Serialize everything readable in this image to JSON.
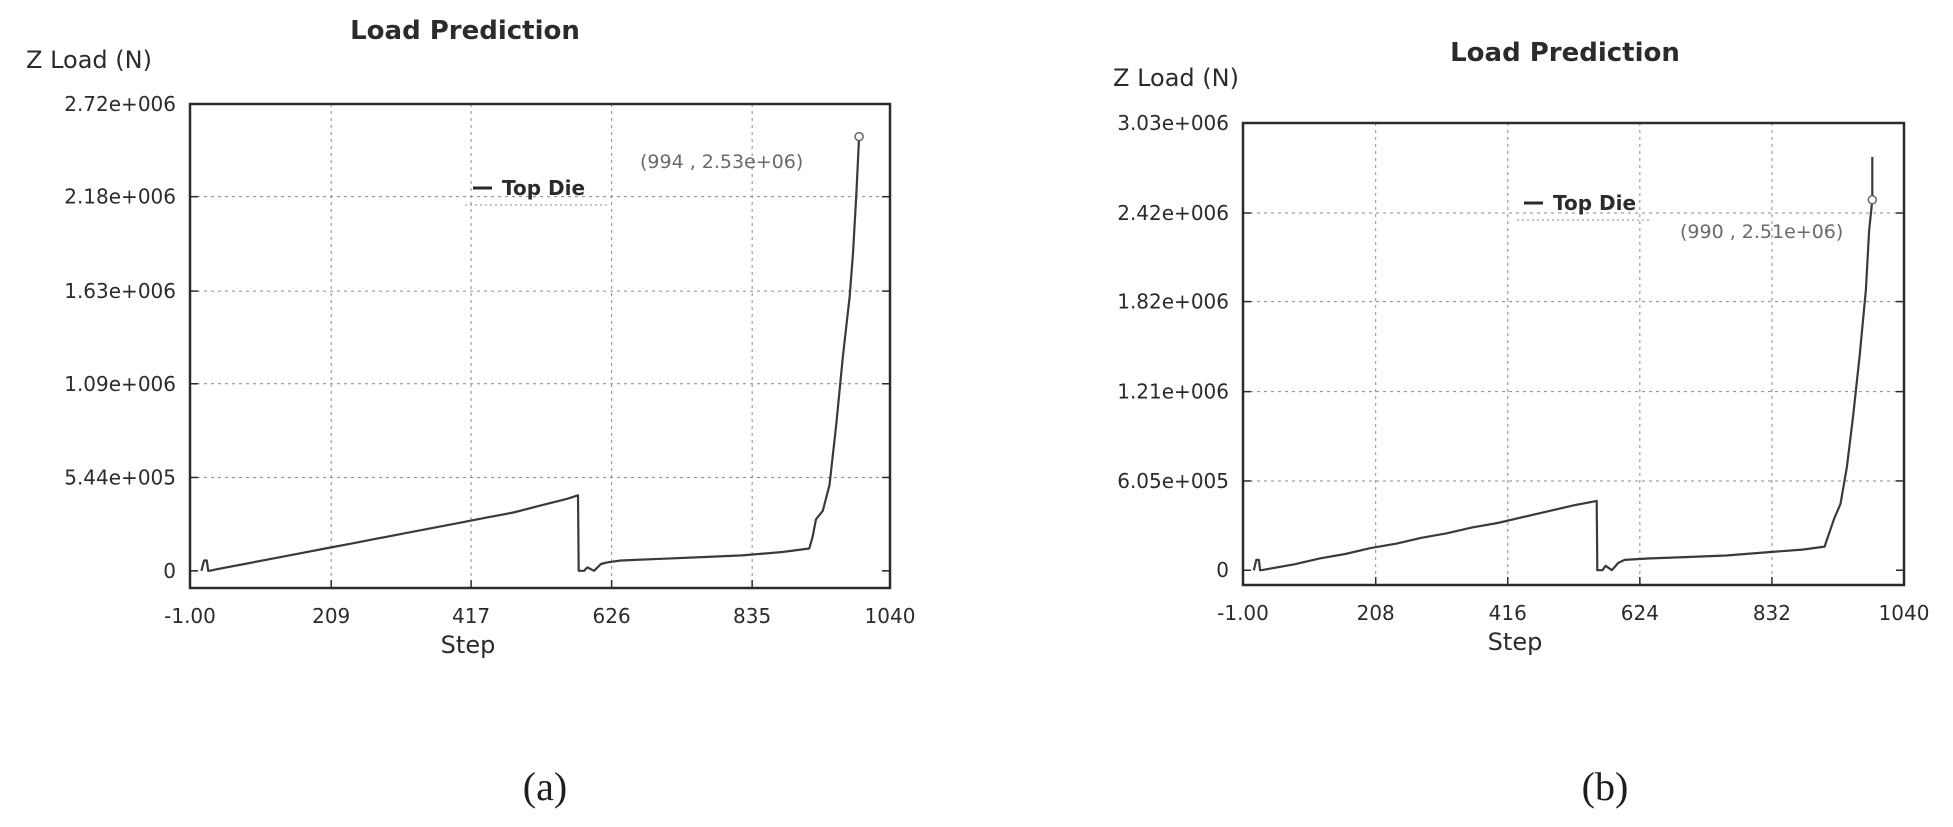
{
  "chart_data": [
    {
      "type": "line",
      "title": "Load Prediction",
      "ylabel": "Z Load (N)",
      "xlabel": "Step",
      "caption": "(a)",
      "xlim": [
        -1.0,
        1040
      ],
      "ylim": [
        -100000.0,
        2720000.0
      ],
      "xticks": [
        -1.0,
        209,
        417,
        626,
        835,
        1040
      ],
      "xtick_labels": [
        "-1.00",
        "209",
        "417",
        "626",
        "835",
        "1040"
      ],
      "yticks": [
        0,
        544000,
        1090000,
        1630000,
        2180000,
        2720000
      ],
      "ytick_labels": [
        "0",
        "5.44e+005",
        "1.09e+006",
        "1.63e+006",
        "2.18e+006",
        "2.72e+006"
      ],
      "grid": true,
      "legend": "top-center",
      "series": [
        {
          "name": "Top Die",
          "x": [
            16,
            20,
            24,
            26,
            28,
            40,
            80,
            120,
            160,
            200,
            240,
            280,
            320,
            360,
            400,
            440,
            480,
            520,
            560,
            576,
            577,
            585,
            590,
            600,
            610,
            620,
            640,
            700,
            760,
            820,
            880,
            920,
            925,
            930,
            940,
            950,
            960,
            970,
            980,
            985,
            990,
            994
          ],
          "y": [
            0,
            60000.0,
            60000.0,
            0,
            0,
            10000.0,
            40000.0,
            70000.0,
            100000.0,
            130000.0,
            160000.0,
            190000.0,
            220000.0,
            250000.0,
            280000.0,
            310000.0,
            340000.0,
            380000.0,
            420000.0,
            440000.0,
            0,
            0,
            20000.0,
            0,
            40000.0,
            50000.0,
            60000.0,
            70000.0,
            80000.0,
            90000.0,
            110000.0,
            130000.0,
            200000.0,
            300000.0,
            350000.0,
            500000.0,
            850000.0,
            1250000.0,
            1600000.0,
            1850000.0,
            2200000.0,
            2530000.0
          ]
        }
      ],
      "annotations": [
        {
          "text": "(994 , 2.53e+06)",
          "x": 994,
          "y": 2530000
        }
      ]
    },
    {
      "type": "line",
      "title": "Load Prediction",
      "ylabel": "Z Load (N)",
      "xlabel": "Step",
      "caption": "(b)",
      "xlim": [
        -1.0,
        1040
      ],
      "ylim": [
        -100000.0,
        3030000.0
      ],
      "xticks": [
        -1.0,
        208,
        416,
        624,
        832,
        1040
      ],
      "xtick_labels": [
        "-1.00",
        "208",
        "416",
        "624",
        "832",
        "1040"
      ],
      "yticks": [
        0,
        605000,
        1210000,
        1820000,
        2420000,
        3030000
      ],
      "ytick_labels": [
        "0",
        "6.05e+005",
        "1.21e+006",
        "1.82e+006",
        "2.42e+006",
        "3.03e+006"
      ],
      "grid": true,
      "legend": "top-center",
      "series": [
        {
          "name": "Top Die",
          "x": [
            16,
            20,
            24,
            26,
            28,
            40,
            80,
            120,
            160,
            200,
            240,
            280,
            320,
            360,
            400,
            440,
            480,
            520,
            556,
            557,
            565,
            570,
            580,
            590,
            600,
            640,
            700,
            760,
            820,
            880,
            915,
            922,
            930,
            940,
            950,
            960,
            970,
            980,
            985,
            990
          ],
          "y": [
            0,
            70000.0,
            70000.0,
            0,
            0,
            10000.0,
            40000.0,
            80000.0,
            110000.0,
            150000.0,
            180000.0,
            220000.0,
            250000.0,
            290000.0,
            320000.0,
            360000.0,
            400000.0,
            440000.0,
            470000.0,
            0,
            0,
            30000.0,
            0,
            50000.0,
            70000.0,
            80000.0,
            90000.0,
            100000.0,
            120000.0,
            140000.0,
            160000.0,
            250000.0,
            350000.0,
            450000.0,
            700000.0,
            1050000.0,
            1450000.0,
            1900000.0,
            2300000.0,
            2510000.0
          ]
        },
        {
          "name": "",
          "x": [
            990,
            990
          ],
          "y": [
            2510000.0,
            2800000.0
          ]
        }
      ],
      "annotations": [
        {
          "text": "(990 , 2.51e+06)",
          "x": 990,
          "y": 2510000
        }
      ]
    }
  ]
}
